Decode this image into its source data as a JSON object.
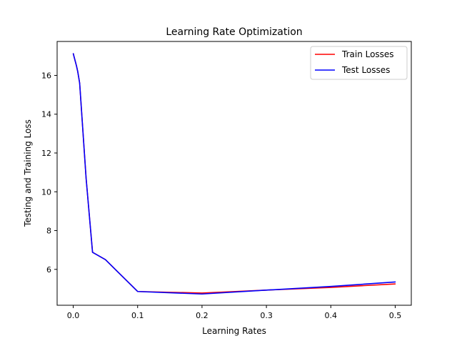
{
  "chart_data": {
    "type": "line",
    "title": "Learning Rate Optimization",
    "xlabel": "Learning Rates",
    "ylabel": "Testing and Training Loss",
    "xlim": [
      -0.025,
      0.525
    ],
    "ylim": [
      4.15,
      17.75
    ],
    "xticks": [
      0.0,
      0.1,
      0.2,
      0.3,
      0.4,
      0.5
    ],
    "xtick_labels": [
      "0.0",
      "0.1",
      "0.2",
      "0.3",
      "0.4",
      "0.5"
    ],
    "yticks": [
      6,
      8,
      10,
      12,
      14,
      16
    ],
    "ytick_labels": [
      "6",
      "8",
      "10",
      "12",
      "14",
      "16"
    ],
    "grid": false,
    "legend_position": "top-right",
    "series": [
      {
        "name": "Train Losses",
        "color": "#ff0000",
        "x": [
          0.0001,
          0.001,
          0.003,
          0.005,
          0.007,
          0.009,
          0.01,
          0.02,
          0.03,
          0.05,
          0.1,
          0.2,
          0.3,
          0.4,
          0.5
        ],
        "y": [
          17.12,
          17.0,
          16.75,
          16.5,
          16.2,
          15.8,
          15.6,
          10.7,
          6.88,
          6.5,
          4.86,
          4.78,
          4.93,
          5.07,
          5.25
        ]
      },
      {
        "name": "Test Losses",
        "color": "#0000ff",
        "x": [
          0.0001,
          0.001,
          0.003,
          0.005,
          0.007,
          0.009,
          0.01,
          0.02,
          0.03,
          0.05,
          0.1,
          0.2,
          0.3,
          0.4,
          0.5
        ],
        "y": [
          17.12,
          17.0,
          16.75,
          16.5,
          16.2,
          15.8,
          15.6,
          10.7,
          6.88,
          6.5,
          4.86,
          4.73,
          4.93,
          5.12,
          5.35
        ]
      }
    ]
  }
}
